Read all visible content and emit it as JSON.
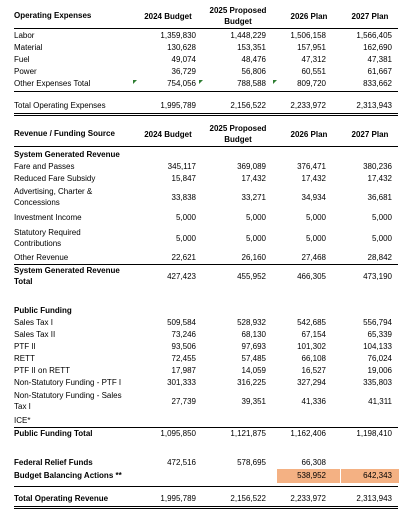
{
  "headers": {
    "col1": "2024 Budget",
    "col2a": "2025 Proposed",
    "col2b": "Budget",
    "col3": "2026 Plan",
    "col4": "2027 Plan"
  },
  "expenses": {
    "title": "Operating Expenses",
    "rows": [
      {
        "label": "Labor",
        "v": [
          "1,359,830",
          "1,448,229",
          "1,506,158",
          "1,566,405"
        ]
      },
      {
        "label": "Material",
        "v": [
          "130,628",
          "153,351",
          "157,951",
          "162,690"
        ]
      },
      {
        "label": "Fuel",
        "v": [
          "49,074",
          "48,476",
          "47,312",
          "47,381"
        ]
      },
      {
        "label": "Power",
        "v": [
          "36,729",
          "56,806",
          "60,551",
          "61,667"
        ]
      },
      {
        "label": "Other Expenses Total",
        "v": [
          "754,056",
          "788,588",
          "809,720",
          "833,662"
        ]
      }
    ],
    "total": {
      "label": "Total Operating Expenses",
      "v": [
        "1,995,789",
        "2,156,522",
        "2,233,972",
        "2,313,943"
      ]
    }
  },
  "revenue": {
    "title": "Revenue / Funding Source",
    "system": {
      "title": "System Generated Revenue",
      "rows": [
        {
          "label": "Fare and Passes",
          "v": [
            "345,117",
            "369,089",
            "376,471",
            "380,236"
          ]
        },
        {
          "label": "Reduced Fare Subsidy",
          "v": [
            "15,847",
            "17,432",
            "17,432",
            "17,432"
          ]
        },
        {
          "label": "Advertising, Charter &",
          "label2": "Concessions",
          "v": [
            "33,838",
            "33,271",
            "34,934",
            "36,681"
          ]
        },
        {
          "label": "Investment Income",
          "v": [
            "5,000",
            "5,000",
            "5,000",
            "5,000"
          ]
        },
        {
          "label": "Statutory Required",
          "label2": "Contributions",
          "v": [
            "5,000",
            "5,000",
            "5,000",
            "5,000"
          ]
        },
        {
          "label": "Other Revenue",
          "v": [
            "22,621",
            "26,160",
            "27,468",
            "28,842"
          ]
        }
      ],
      "total": {
        "label": "System Generated Revenue",
        "label2": "Total",
        "v": [
          "427,423",
          "455,952",
          "466,305",
          "473,190"
        ]
      }
    },
    "public": {
      "title": "Public Funding",
      "rows": [
        {
          "label": "Sales Tax I",
          "v": [
            "509,584",
            "528,932",
            "542,685",
            "556,794"
          ]
        },
        {
          "label": "Sales Tax II",
          "v": [
            "73,246",
            "68,130",
            "67,154",
            "65,339"
          ]
        },
        {
          "label": "PTF II",
          "v": [
            "93,506",
            "97,693",
            "101,302",
            "104,133"
          ]
        },
        {
          "label": "RETT",
          "v": [
            "72,455",
            "57,485",
            "66,108",
            "76,024"
          ]
        },
        {
          "label": "PTF II on RETT",
          "v": [
            "17,987",
            "14,059",
            "16,527",
            "19,006"
          ]
        },
        {
          "label": "Non-Statutory Funding - PTF I",
          "v": [
            "301,333",
            "316,225",
            "327,294",
            "335,803"
          ]
        },
        {
          "label": "Non-Statutory Funding - Sales",
          "label2": "Tax I",
          "v": [
            "27,739",
            "39,351",
            "41,336",
            "41,311"
          ]
        },
        {
          "label": "ICE*",
          "v": [
            "",
            "",
            "",
            ""
          ]
        }
      ],
      "total": {
        "label": "Public Funding Total",
        "v": [
          "1,095,850",
          "1,121,875",
          "1,162,406",
          "1,198,410"
        ]
      }
    },
    "federal": {
      "label": "Federal Relief Funds",
      "v": [
        "472,516",
        "578,695",
        "66,308",
        ""
      ]
    },
    "balancing": {
      "label": "Budget Balancing Actions **",
      "v": [
        "",
        "",
        "538,952",
        "642,343"
      ]
    },
    "total": {
      "label": "Total Operating Revenue",
      "v": [
        "1,995,789",
        "2,156,522",
        "2,233,972",
        "2,313,943"
      ]
    }
  }
}
